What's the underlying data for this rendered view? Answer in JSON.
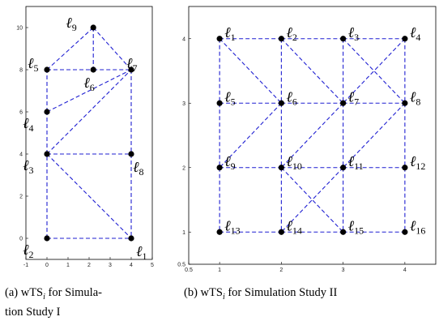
{
  "panels": [
    {
      "id": "a",
      "caption_lines": [
        "(a) wTS",
        "i",
        " for Simula-",
        "tion Study I"
      ],
      "frame": {
        "left": 32,
        "top": 8,
        "right": 188,
        "bottom": 320
      },
      "xrange": [
        -1,
        5
      ],
      "yrange": [
        -1,
        11
      ],
      "xticks": [
        -1,
        0,
        1,
        2,
        3,
        4,
        5
      ],
      "yticks": [
        0,
        2,
        4,
        6,
        8,
        10
      ],
      "nodes": [
        {
          "n": 1,
          "x": 4,
          "y": 0,
          "lx": 6,
          "ly": 22
        },
        {
          "n": 2,
          "x": 0,
          "y": 0,
          "lx": -30,
          "ly": 20
        },
        {
          "n": 3,
          "x": 0,
          "y": 4,
          "lx": -30,
          "ly": 20
        },
        {
          "n": 4,
          "x": 0,
          "y": 6,
          "lx": -30,
          "ly": 20
        },
        {
          "n": 5,
          "x": 0,
          "y": 8,
          "lx": -24,
          "ly": -2
        },
        {
          "n": 6,
          "x": 2.2,
          "y": 8,
          "lx": -12,
          "ly": 22
        },
        {
          "n": 7,
          "x": 4,
          "y": 8,
          "lx": -6,
          "ly": -2
        },
        {
          "n": 8,
          "x": 4,
          "y": 4,
          "lx": 2,
          "ly": 22
        },
        {
          "n": 9,
          "x": 2.2,
          "y": 10,
          "lx": -34,
          "ly": 0
        }
      ],
      "edges": [
        [
          2,
          1
        ],
        [
          2,
          3
        ],
        [
          3,
          4
        ],
        [
          4,
          5
        ],
        [
          5,
          6
        ],
        [
          6,
          7
        ],
        [
          5,
          9
        ],
        [
          9,
          7
        ],
        [
          9,
          6
        ],
        [
          7,
          8
        ],
        [
          8,
          1
        ],
        [
          3,
          8
        ],
        [
          3,
          1
        ],
        [
          4,
          7
        ],
        [
          3,
          7
        ]
      ]
    },
    {
      "id": "b",
      "caption_lines": [
        "(b) wTS",
        "i",
        " for Simulation Study II"
      ],
      "frame": {
        "left": 233,
        "top": 8,
        "right": 538,
        "bottom": 326
      },
      "xrange": [
        0.5,
        4.5
      ],
      "yrange": [
        0.5,
        4.5
      ],
      "xticks": [
        0.5,
        1,
        2,
        3,
        4
      ],
      "yticks": [
        0.5,
        1,
        2,
        3,
        4
      ],
      "nodes": [
        {
          "n": 1,
          "x": 1,
          "y": 4,
          "lx": 6,
          "ly": -2
        },
        {
          "n": 2,
          "x": 2,
          "y": 4,
          "lx": 6,
          "ly": -2
        },
        {
          "n": 3,
          "x": 3,
          "y": 4,
          "lx": 6,
          "ly": -2
        },
        {
          "n": 4,
          "x": 4,
          "y": 4,
          "lx": 6,
          "ly": -2
        },
        {
          "n": 5,
          "x": 1,
          "y": 3,
          "lx": 6,
          "ly": -2
        },
        {
          "n": 6,
          "x": 2,
          "y": 3,
          "lx": 6,
          "ly": -2
        },
        {
          "n": 7,
          "x": 3,
          "y": 3,
          "lx": 6,
          "ly": -2
        },
        {
          "n": 8,
          "x": 4,
          "y": 3,
          "lx": 6,
          "ly": -2
        },
        {
          "n": 9,
          "x": 1,
          "y": 2,
          "lx": 6,
          "ly": -2
        },
        {
          "n": 10,
          "x": 2,
          "y": 2,
          "lx": 6,
          "ly": -2
        },
        {
          "n": 11,
          "x": 3,
          "y": 2,
          "lx": 6,
          "ly": -2
        },
        {
          "n": 12,
          "x": 4,
          "y": 2,
          "lx": 6,
          "ly": -2
        },
        {
          "n": 13,
          "x": 1,
          "y": 1,
          "lx": 6,
          "ly": -2
        },
        {
          "n": 14,
          "x": 2,
          "y": 1,
          "lx": 6,
          "ly": -2
        },
        {
          "n": 15,
          "x": 3,
          "y": 1,
          "lx": 6,
          "ly": -2
        },
        {
          "n": 16,
          "x": 4,
          "y": 1,
          "lx": 6,
          "ly": -2
        }
      ],
      "edges": [
        [
          1,
          2
        ],
        [
          2,
          3
        ],
        [
          3,
          4
        ],
        [
          5,
          6
        ],
        [
          6,
          7
        ],
        [
          7,
          8
        ],
        [
          9,
          10
        ],
        [
          10,
          11
        ],
        [
          11,
          12
        ],
        [
          13,
          14
        ],
        [
          14,
          15
        ],
        [
          15,
          16
        ],
        [
          1,
          5
        ],
        [
          5,
          9
        ],
        [
          9,
          13
        ],
        [
          2,
          6
        ],
        [
          6,
          10
        ],
        [
          10,
          14
        ],
        [
          3,
          7
        ],
        [
          7,
          11
        ],
        [
          11,
          15
        ],
        [
          4,
          8
        ],
        [
          8,
          12
        ],
        [
          12,
          16
        ],
        [
          1,
          6
        ],
        [
          2,
          7
        ],
        [
          3,
          8
        ],
        [
          4,
          7
        ],
        [
          7,
          10
        ],
        [
          6,
          9
        ],
        [
          8,
          11
        ],
        [
          10,
          15
        ],
        [
          11,
          14
        ]
      ]
    }
  ],
  "node_symbol": "ℓ",
  "colors": {
    "edge": "#1f1fd2",
    "node": "#000000",
    "frame": "#000000"
  }
}
